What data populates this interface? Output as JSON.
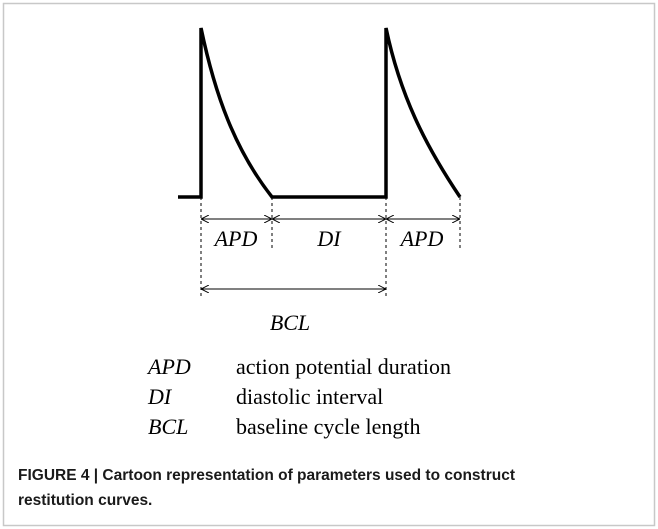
{
  "diagram": {
    "interval_labels": [
      "APD",
      "DI",
      "APD"
    ],
    "cycle_label": "BCL",
    "legend": [
      {
        "term": "APD",
        "definition": "action potential duration"
      },
      {
        "term": "DI",
        "definition": "diastolic interval"
      },
      {
        "term": "BCL",
        "definition": "baseline cycle length"
      }
    ],
    "caption": [
      "FIGURE 4 | Cartoon representation of parameters used to construct",
      "restitution curves."
    ]
  }
}
